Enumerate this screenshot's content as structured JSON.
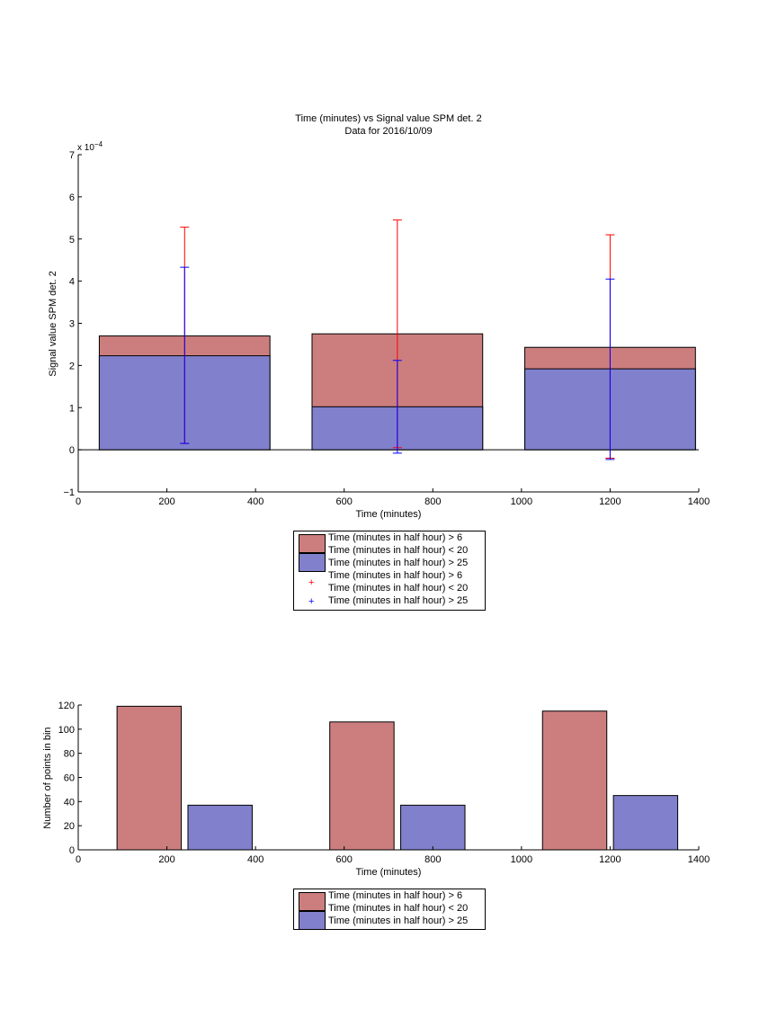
{
  "colors": {
    "bar_red": "#cc7e7e",
    "bar_blue": "#8080cc",
    "err_red": "#ff0000",
    "err_blue": "#0000ff",
    "axis": "#000000"
  },
  "chart_data": [
    {
      "type": "bar",
      "subtype": "overlaid-bars-with-error-bars",
      "title": "Time (minutes) vs Signal value SPM det. 2",
      "subtitle": "Data for 2016/10/09",
      "xlabel": "Time (minutes)",
      "ylabel": "Signal value SPM det. 2",
      "y_exponent_label": "x 10",
      "y_exponent_power": "−4",
      "xlim": [
        0,
        1400
      ],
      "ylim": [
        -1,
        7
      ],
      "xticks": [
        "0",
        "200",
        "400",
        "600",
        "800",
        "1000",
        "1200",
        "1400"
      ],
      "yticks": [
        "−1",
        "0",
        "1",
        "2",
        "3",
        "4",
        "5",
        "6",
        "7"
      ],
      "x": [
        240,
        720,
        1200
      ],
      "bar_width": 385,
      "series": [
        {
          "name": "Time (minutes in half hour) > 6\nTime (minutes in half hour) < 20",
          "values": [
            2.7,
            2.75,
            2.43
          ],
          "errors_low": [
            0.15,
            0.05,
            -0.2
          ],
          "errors_high": [
            5.28,
            5.45,
            5.1
          ],
          "error_x_offset": 0
        },
        {
          "name": "Time (minutes in half hour) > 25",
          "values": [
            2.23,
            1.02,
            1.92
          ],
          "errors_low": [
            0.15,
            -0.08,
            -0.23
          ],
          "errors_high": [
            4.33,
            2.12,
            4.05
          ],
          "error_x_offset": 0
        }
      ],
      "legend": {
        "placement": "below",
        "entries": [
          "Time (minutes in half hour) > 6",
          "Time (minutes in half hour) < 20",
          "Time (minutes in half hour) > 25",
          "Time (minutes in half hour) > 6",
          "Time (minutes in half hour) < 20",
          "Time (minutes in half hour) > 25"
        ]
      }
    },
    {
      "type": "bar",
      "subtype": "grouped",
      "xlabel": "Time (minutes)",
      "ylabel": "Number of points in bin",
      "xlim": [
        0,
        1400
      ],
      "ylim": [
        0,
        120
      ],
      "xticks": [
        "0",
        "200",
        "400",
        "600",
        "800",
        "1000",
        "1200",
        "1400"
      ],
      "yticks": [
        "0",
        "20",
        "40",
        "60",
        "80",
        "100",
        "120"
      ],
      "x": [
        160,
        320,
        640,
        800,
        1120,
        1280
      ],
      "bar_width": 145,
      "series": [
        {
          "name": "Time (minutes in half hour) > 6\nTime (minutes in half hour) < 20",
          "x": [
            160,
            640,
            1120
          ],
          "values": [
            119,
            106,
            115
          ]
        },
        {
          "name": "Time (minutes in half hour) > 25",
          "x": [
            320,
            800,
            1280
          ],
          "values": [
            37,
            37,
            45
          ]
        }
      ],
      "legend": {
        "placement": "below",
        "entries": [
          "Time (minutes in half hour) > 6",
          "Time (minutes in half hour) < 20",
          "Time (minutes in half hour) > 25"
        ]
      }
    }
  ]
}
